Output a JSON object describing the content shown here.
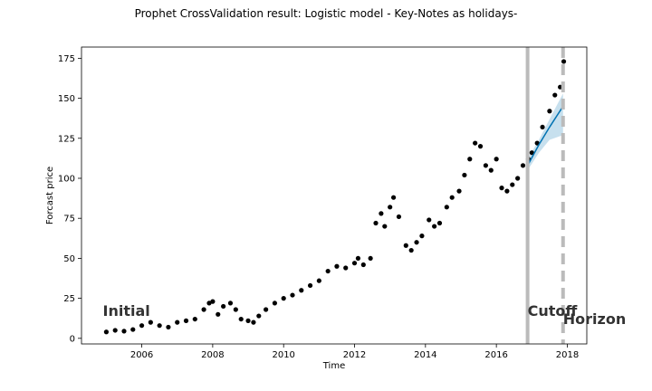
{
  "chart_data": {
    "type": "scatter",
    "title": "Prophet CrossValidation result: Logistic model - Key-Notes as holidays-",
    "xlabel": "Time",
    "ylabel": "Forcast price",
    "xlim": [
      2004.3,
      2018.55
    ],
    "ylim": [
      -3.5,
      182
    ],
    "xticks": [
      2006,
      2008,
      2010,
      2012,
      2014,
      2016,
      2018
    ],
    "yticks": [
      0,
      25,
      50,
      75,
      100,
      125,
      150,
      175
    ],
    "grid": false,
    "series": [
      {
        "kind": "observed-points",
        "color": "#000000",
        "x": [
          2005.0,
          2005.25,
          2005.5,
          2005.75,
          2006.0,
          2006.25,
          2006.5,
          2006.75,
          2007.0,
          2007.25,
          2007.5,
          2007.75,
          2007.9,
          2008.0,
          2008.15,
          2008.3,
          2008.5,
          2008.65,
          2008.8,
          2009.0,
          2009.15,
          2009.3,
          2009.5,
          2009.75,
          2010.0,
          2010.25,
          2010.5,
          2010.75,
          2011.0,
          2011.25,
          2011.5,
          2011.75,
          2012.0,
          2012.1,
          2012.25,
          2012.45,
          2012.6,
          2012.75,
          2012.85,
          2013.0,
          2013.1,
          2013.25,
          2013.45,
          2013.6,
          2013.75,
          2013.9,
          2014.1,
          2014.25,
          2014.4,
          2014.6,
          2014.75,
          2014.95,
          2015.1,
          2015.25,
          2015.4,
          2015.55,
          2015.7,
          2015.85,
          2016.0,
          2016.15,
          2016.3,
          2016.45,
          2016.6,
          2016.75,
          2016.9,
          2017.0,
          2017.15,
          2017.3,
          2017.5,
          2017.65,
          2017.8,
          2017.9
        ],
        "y": [
          4,
          5,
          4.5,
          5.5,
          8,
          10,
          8,
          7,
          10,
          11,
          12,
          18,
          22,
          23,
          15,
          20,
          22,
          18,
          12,
          11,
          10,
          14,
          18,
          22,
          25,
          27,
          30,
          33,
          36,
          42,
          45,
          44,
          47,
          50,
          46,
          50,
          72,
          78,
          70,
          82,
          88,
          76,
          58,
          55,
          60,
          64,
          74,
          70,
          72,
          82,
          88,
          92,
          102,
          112,
          122,
          120,
          108,
          105,
          112,
          94,
          92,
          96,
          100,
          108,
          112,
          116,
          122,
          132,
          142,
          152,
          157,
          173
        ]
      },
      {
        "kind": "forecast-line",
        "color": "#0072B2",
        "x": [
          2016.88,
          2017.2,
          2017.5,
          2017.88
        ],
        "y": [
          108,
          121,
          132,
          145
        ]
      },
      {
        "kind": "uncertainty-band",
        "color": "#0072B2",
        "x": [
          2016.88,
          2017.2,
          2017.5,
          2017.88
        ],
        "upper": [
          112,
          124,
          137,
          153
        ],
        "lower": [
          105,
          116,
          124,
          127
        ]
      }
    ],
    "annotations": [
      {
        "text": "Initial",
        "x": 2004.9,
        "y": 14
      },
      {
        "text": "Cutoff",
        "x": 2016.88,
        "y": 14
      },
      {
        "text": "Horizon",
        "x": 2017.88,
        "y": 9
      }
    ],
    "vlines": [
      {
        "name": "cutoff",
        "x": 2016.88,
        "style": "solid",
        "color": "#bbbbbb"
      },
      {
        "name": "horizon",
        "x": 2017.88,
        "style": "dashed",
        "color": "#bbbbbb"
      }
    ]
  }
}
